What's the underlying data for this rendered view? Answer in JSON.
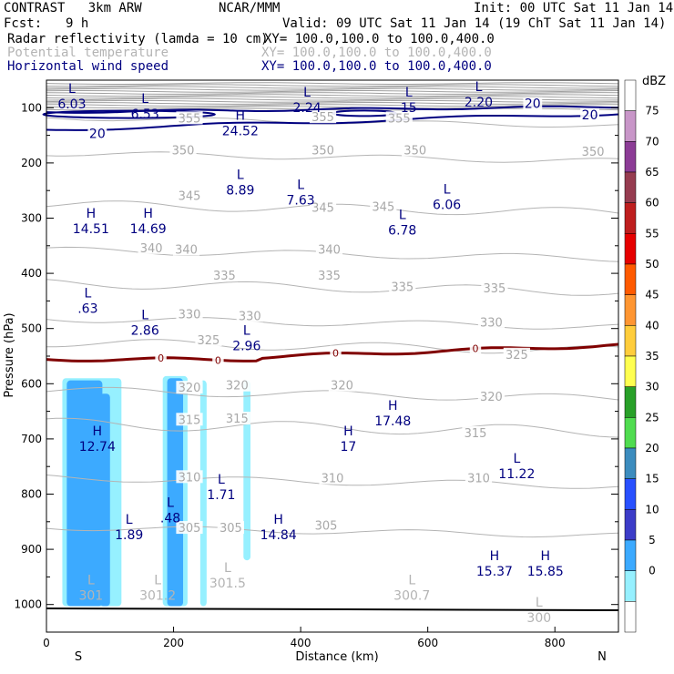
{
  "header": {
    "model": "CONTRAST   3km ARW",
    "center": "NCAR/MMM",
    "init": "Init: 00 UTC Sat 11 Jan 14",
    "fcst_label": "Fcst:",
    "fcst_value": "9 h",
    "valid": "Valid: 09 UTC Sat 11 Jan 14 (19 ChT Sat 11 Jan 14)",
    "fields": [
      {
        "name": "Radar reflectivity (lamda = 10 cm)",
        "xy": "XY= 100.0,100.0 to 100.0,400.0",
        "color": "#000000"
      },
      {
        "name": "Potential temperature",
        "xy": "XY= 100.0,100.0 to 100.0,400.0",
        "color": "#b4b4b4"
      },
      {
        "name": "Horizontal wind speed",
        "xy": "XY= 100.0,100.0 to 100.0,400.0",
        "color": "#000080"
      }
    ]
  },
  "chart_data": {
    "type": "cross-section contour",
    "xlabel": "Distance (km)",
    "ylabel": "Pressure (hPa)",
    "xlim": [
      0,
      900
    ],
    "ylim": [
      1050,
      50
    ],
    "x_ticks": [
      "0",
      "200",
      "400",
      "600",
      "800"
    ],
    "y_ticks": [
      "100",
      "200",
      "300",
      "400",
      "500",
      "600",
      "700",
      "800",
      "900",
      "1000"
    ],
    "x_end_labels": {
      "left": "S",
      "right": "N"
    },
    "theta_labels": [
      {
        "text": "355",
        "x": 225,
        "p": 120
      },
      {
        "text": "355",
        "x": 435,
        "p": 118
      },
      {
        "text": "355",
        "x": 555,
        "p": 120
      },
      {
        "text": "350",
        "x": 215,
        "p": 178
      },
      {
        "text": "350",
        "x": 435,
        "p": 178
      },
      {
        "text": "350",
        "x": 580,
        "p": 178
      },
      {
        "text": "350",
        "x": 860,
        "p": 180
      },
      {
        "text": "345",
        "x": 225,
        "p": 260
      },
      {
        "text": "345",
        "x": 435,
        "p": 282
      },
      {
        "text": "345",
        "x": 530,
        "p": 280
      },
      {
        "text": "340",
        "x": 165,
        "p": 355
      },
      {
        "text": "340",
        "x": 220,
        "p": 358
      },
      {
        "text": "340",
        "x": 445,
        "p": 358
      },
      {
        "text": "335",
        "x": 280,
        "p": 405
      },
      {
        "text": "335",
        "x": 445,
        "p": 405
      },
      {
        "text": "335",
        "x": 560,
        "p": 425
      },
      {
        "text": "335",
        "x": 705,
        "p": 428
      },
      {
        "text": "330",
        "x": 225,
        "p": 475
      },
      {
        "text": "330",
        "x": 320,
        "p": 478
      },
      {
        "text": "330",
        "x": 700,
        "p": 490
      },
      {
        "text": "325",
        "x": 255,
        "p": 522
      },
      {
        "text": "325",
        "x": 740,
        "p": 548
      },
      {
        "text": "320",
        "x": 225,
        "p": 608
      },
      {
        "text": "320",
        "x": 300,
        "p": 604
      },
      {
        "text": "320",
        "x": 465,
        "p": 604
      },
      {
        "text": "320",
        "x": 700,
        "p": 624
      },
      {
        "text": "315",
        "x": 225,
        "p": 666
      },
      {
        "text": "315",
        "x": 300,
        "p": 664
      },
      {
        "text": "315",
        "x": 675,
        "p": 690
      },
      {
        "text": "310",
        "x": 225,
        "p": 770
      },
      {
        "text": "310",
        "x": 450,
        "p": 772
      },
      {
        "text": "310",
        "x": 680,
        "p": 772
      },
      {
        "text": "305",
        "x": 225,
        "p": 862
      },
      {
        "text": "305",
        "x": 290,
        "p": 862
      },
      {
        "text": "305",
        "x": 440,
        "p": 858
      }
    ],
    "wind_contours": [
      {
        "text": "20",
        "x": 80,
        "p": 148
      },
      {
        "text": "20",
        "x": 765,
        "p": 94
      },
      {
        "text": "20",
        "x": 855,
        "p": 114
      }
    ],
    "freezing_line": {
      "text": "0",
      "labels_x": [
        180,
        270,
        455,
        675
      ]
    },
    "wind_extrema": [
      {
        "kind": "L",
        "value": "6.03",
        "x": 40,
        "p": 80
      },
      {
        "kind": "L",
        "value": "6.53",
        "x": 155,
        "p": 98
      },
      {
        "kind": "L",
        "value": "2.24",
        "x": 410,
        "p": 86
      },
      {
        "kind": "L",
        "value": "15",
        "x": 570,
        "p": 86
      },
      {
        "kind": "L",
        "value": "2.20",
        "x": 680,
        "p": 76
      },
      {
        "kind": "H",
        "value": "24.52",
        "x": 305,
        "p": 128
      },
      {
        "kind": "L",
        "value": "8.89",
        "x": 305,
        "p": 236
      },
      {
        "kind": "L",
        "value": "7.63",
        "x": 400,
        "p": 254
      },
      {
        "kind": "L",
        "value": "6.06",
        "x": 630,
        "p": 262
      },
      {
        "kind": "H",
        "value": "14.51",
        "x": 70,
        "p": 306
      },
      {
        "kind": "H",
        "value": "14.69",
        "x": 160,
        "p": 306
      },
      {
        "kind": "L",
        "value": "6.78",
        "x": 560,
        "p": 308
      },
      {
        "kind": "L",
        "value": ".63",
        "x": 65,
        "p": 450
      },
      {
        "kind": "L",
        "value": "2.86",
        "x": 155,
        "p": 490
      },
      {
        "kind": "L",
        "value": "2.96",
        "x": 315,
        "p": 518
      },
      {
        "kind": "H",
        "value": "17.48",
        "x": 545,
        "p": 654
      },
      {
        "kind": "H",
        "value": "12.74",
        "x": 80,
        "p": 700
      },
      {
        "kind": "H",
        "value": "17",
        "x": 475,
        "p": 700
      },
      {
        "kind": "L",
        "value": "11.22",
        "x": 740,
        "p": 750
      },
      {
        "kind": "L",
        "value": "1.71",
        "x": 275,
        "p": 788
      },
      {
        "kind": "L",
        "value": ".48",
        "x": 195,
        "p": 830
      },
      {
        "kind": "L",
        "value": "1.89",
        "x": 130,
        "p": 860
      },
      {
        "kind": "H",
        "value": "14.84",
        "x": 365,
        "p": 860
      },
      {
        "kind": "H",
        "value": "15.37",
        "x": 705,
        "p": 926
      },
      {
        "kind": "H",
        "value": "15.85",
        "x": 785,
        "p": 926
      }
    ],
    "theta_extrema": [
      {
        "kind": "L",
        "value": "301",
        "x": 70,
        "p": 970
      },
      {
        "kind": "L",
        "value": "301.2",
        "x": 175,
        "p": 970
      },
      {
        "kind": "L",
        "value": "301.5",
        "x": 285,
        "p": 948
      },
      {
        "kind": "L",
        "value": "300.7",
        "x": 575,
        "p": 970
      },
      {
        "kind": "L",
        "value": "300",
        "x": 775,
        "p": 1010
      }
    ],
    "reflectivity_cells": [
      {
        "x1": 25,
        "x2": 118,
        "p_top": 590,
        "p_bot": 1003,
        "dbz": 5
      },
      {
        "x1": 32,
        "x2": 88,
        "p_top": 594,
        "p_bot": 1003,
        "dbz": 10
      },
      {
        "x1": 84,
        "x2": 100,
        "p_top": 618,
        "p_bot": 1003,
        "dbz": 10
      },
      {
        "x1": 183,
        "x2": 222,
        "p_top": 586,
        "p_bot": 1003,
        "dbz": 5
      },
      {
        "x1": 190,
        "x2": 215,
        "p_top": 590,
        "p_bot": 1003,
        "dbz": 10
      },
      {
        "x1": 242,
        "x2": 252,
        "p_top": 594,
        "p_bot": 1003,
        "dbz": 5
      },
      {
        "x1": 310,
        "x2": 321,
        "p_top": 594,
        "p_bot": 920,
        "dbz": 5
      }
    ],
    "colorbar": {
      "unit": "dBZ",
      "levels": [
        "75",
        "70",
        "65",
        "60",
        "55",
        "50",
        "45",
        "40",
        "35",
        "30",
        "25",
        "20",
        "15",
        "10",
        "5",
        "0"
      ],
      "colors": [
        "#ffffff",
        "#c896c8",
        "#8c3c96",
        "#963c50",
        "#be1e1e",
        "#e60000",
        "#ff5a00",
        "#ff9632",
        "#ffcd3c",
        "#ffff50",
        "#28a028",
        "#50dc50",
        "#3c8cbe",
        "#2850ff",
        "#3c3cc8",
        "#3caaff",
        "#96f0ff",
        "#ffffff"
      ]
    }
  }
}
